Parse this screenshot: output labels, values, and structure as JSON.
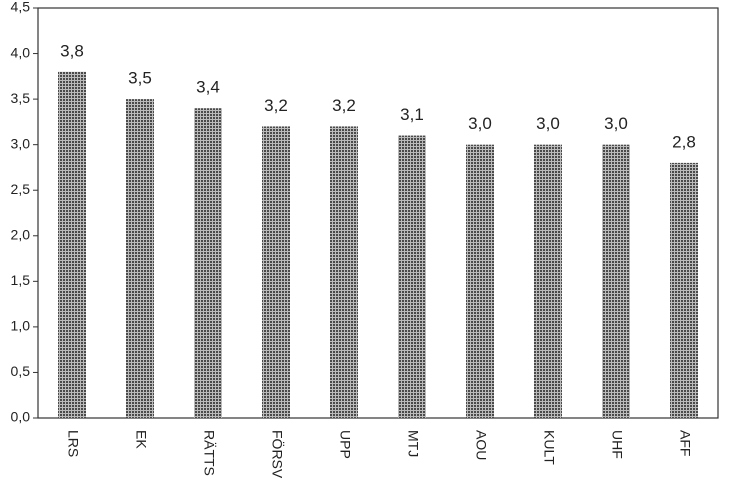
{
  "chart_data": {
    "type": "bar",
    "categories": [
      "LRS",
      "EK",
      "RÄTTS",
      "FÖRSV",
      "UPP",
      "MTJ",
      "AOU",
      "KULT",
      "UHF",
      "AFF"
    ],
    "values": [
      3.8,
      3.5,
      3.4,
      3.2,
      3.2,
      3.1,
      3.0,
      3.0,
      3.0,
      2.8
    ],
    "value_labels": [
      "3,8",
      "3,5",
      "3,4",
      "3,2",
      "3,2",
      "3,1",
      "3,0",
      "3,0",
      "3,0",
      "2,8"
    ],
    "color": "#4a4a4a",
    "ylim": [
      0,
      4.5
    ],
    "yticks": [
      {
        "value": 0,
        "label": "0,0"
      },
      {
        "value": 0.5,
        "label": "0,5"
      },
      {
        "value": 1,
        "label": "1,0"
      },
      {
        "value": 1.5,
        "label": "1,5"
      },
      {
        "value": 2,
        "label": "2,0"
      },
      {
        "value": 2.5,
        "label": "2,5"
      },
      {
        "value": 3,
        "label": "3,0"
      },
      {
        "value": 3.5,
        "label": "3,5"
      },
      {
        "value": 4,
        "label": "4,0"
      },
      {
        "value": 4.5,
        "label": "4,5"
      }
    ],
    "grid": false
  }
}
